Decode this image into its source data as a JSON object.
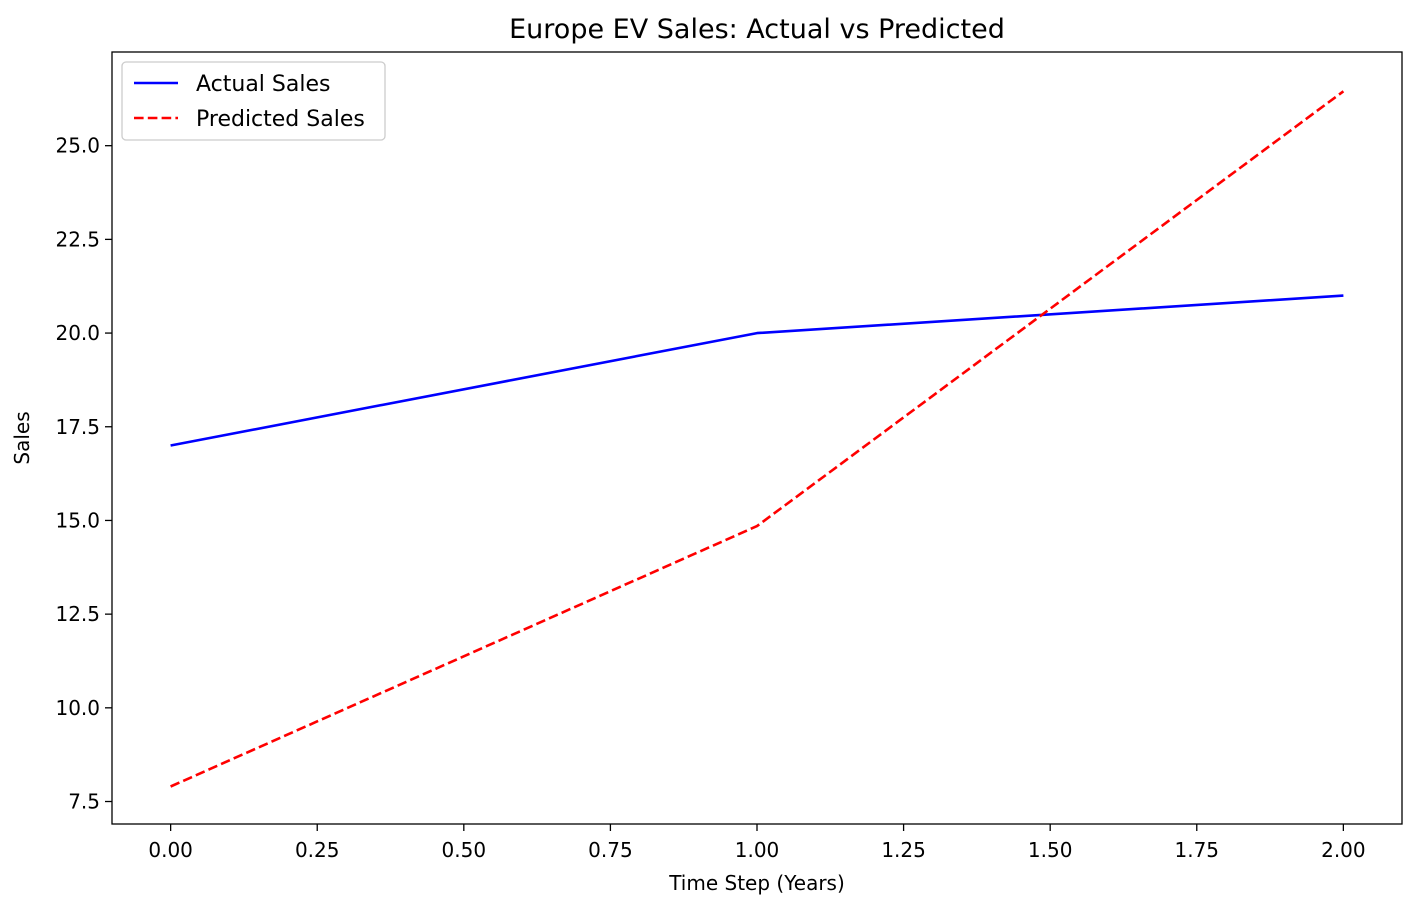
{
  "chart_data": {
    "type": "line",
    "title": "Europe EV Sales: Actual vs Predicted",
    "xlabel": "Time Step (Years)",
    "ylabel": "Sales",
    "x": [
      0,
      1,
      2
    ],
    "xlim": [
      -0.1,
      2.1
    ],
    "ylim": [
      6.9,
      27.5
    ],
    "xticks": [
      0.0,
      0.25,
      0.5,
      0.75,
      1.0,
      1.25,
      1.5,
      1.75,
      2.0
    ],
    "xtick_labels": [
      "0.00",
      "0.25",
      "0.50",
      "0.75",
      "1.00",
      "1.25",
      "1.50",
      "1.75",
      "2.00"
    ],
    "yticks": [
      7.5,
      10.0,
      12.5,
      15.0,
      17.5,
      20.0,
      22.5,
      25.0
    ],
    "ytick_labels": [
      "7.5",
      "10.0",
      "12.5",
      "15.0",
      "17.5",
      "20.0",
      "22.5",
      "25.0"
    ],
    "grid": false,
    "legend_position": "top-left",
    "series": [
      {
        "name": "Actual Sales",
        "values": [
          17.0,
          20.0,
          21.0
        ],
        "color": "#0000ff",
        "style": "solid"
      },
      {
        "name": "Predicted Sales",
        "values": [
          7.9,
          14.85,
          26.45
        ],
        "color": "#ff0000",
        "style": "dashed"
      }
    ]
  }
}
